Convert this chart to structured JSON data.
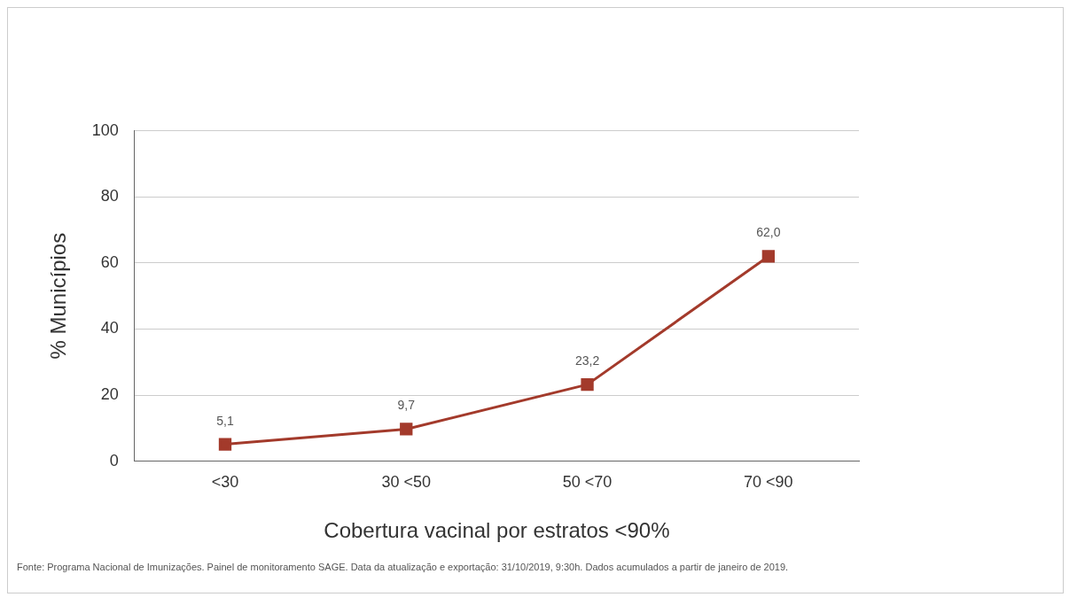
{
  "chart_data": {
    "type": "line",
    "xlabel": "Cobertura vacinal por estratos <90%",
    "ylabel": "% Municípios",
    "categories": [
      "<30",
      "30 <50",
      "50 <70",
      "70 <90"
    ],
    "series": [
      {
        "color": "#a33a2b",
        "values": [
          5.1,
          9.7,
          23.2,
          62.0
        ],
        "value_labels": [
          "5,1",
          "9,7",
          "23,2",
          "62,0"
        ]
      }
    ],
    "ylim": [
      0,
      100
    ],
    "yticks": [
      0,
      20,
      40,
      60,
      80,
      100
    ],
    "grid": "y",
    "marker": "square",
    "legend": false,
    "annotations": [
      "Fonte: Programa Nacional de Imunizações. Painel de monitoramento SAGE. Data da atualização e exportação: 31/10/2019, 9:30h. Dados acumulados a partir de janeiro de 2019."
    ]
  }
}
